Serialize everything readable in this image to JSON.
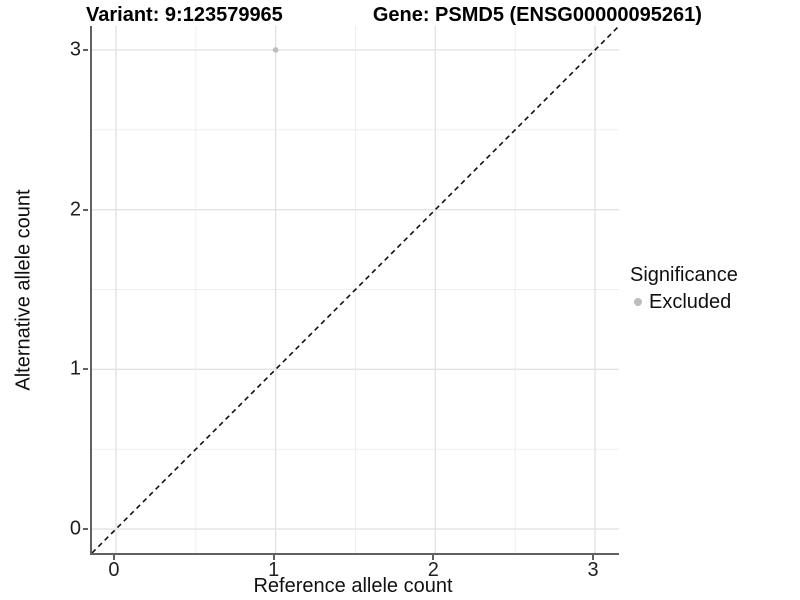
{
  "title": {
    "variant": "Variant: 9:123579965",
    "gene": "Gene: PSMD5 (ENSG00000095261)"
  },
  "chart_data": {
    "type": "scatter",
    "title_left": "Variant: 9:123579965",
    "title_right": "Gene: PSMD5 (ENSG00000095261)",
    "xlabel": "Reference allele count",
    "ylabel": "Alternative allele count",
    "xlim": [
      -0.15,
      3.15
    ],
    "ylim": [
      -0.15,
      3.15
    ],
    "x_ticks": [
      0,
      1,
      2,
      3
    ],
    "y_ticks": [
      0,
      1,
      2,
      3
    ],
    "x_minor_ticks": [
      0.5,
      1.5,
      2.5
    ],
    "y_minor_ticks": [
      0.5,
      1.5,
      2.5
    ],
    "grid": "major and minor, light gray on white",
    "series": [
      {
        "name": "Excluded",
        "color": "#bdbdbd",
        "points": [
          {
            "x": 1,
            "y": 3
          }
        ]
      }
    ],
    "identity_line": {
      "style": "dashed",
      "color": "#111111",
      "from": [
        -0.15,
        -0.15
      ],
      "to": [
        3.15,
        3.15
      ]
    },
    "legend": {
      "title": "Significance",
      "position": "right-center",
      "entries": [
        {
          "label": "Excluded",
          "color": "#bdbdbd"
        }
      ]
    }
  },
  "colors": {
    "background": "#ffffff",
    "axis_line": "#616161",
    "grid_major": "#e3e3e3",
    "grid_minor": "#efefef",
    "tick_label": "#1f1f1f",
    "point_excluded": "#bdbdbd",
    "dashed_line": "#111111"
  }
}
